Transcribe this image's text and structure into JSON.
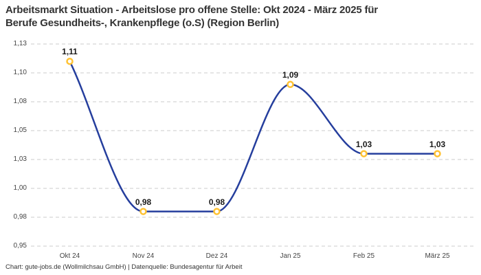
{
  "header": {
    "title_lines": [
      "Arbeitsmarkt Situation - Arbeitslose pro offene Stelle: Okt 2024 - März 2025 für",
      "Berufe Gesundheits-, Krankenpflege (o.S) (Region Berlin)"
    ]
  },
  "footer": {
    "attribution": "Chart: gute-jobs.de (Wollmilchsau GmbH) | Datenquelle: Bundesagentur für Arbeit"
  },
  "chart_data": {
    "type": "line",
    "title": "Arbeitsmarkt Situation - Arbeitslose pro offene Stelle: Okt 2024 - März 2025 für Berufe Gesundheits-, Krankenpflege (o.S) (Region Berlin)",
    "categories": [
      "Okt 24",
      "Nov 24",
      "Dez 24",
      "Jan 25",
      "Feb 25",
      "März 25"
    ],
    "values": [
      1.11,
      0.98,
      0.98,
      1.09,
      1.03,
      1.03
    ],
    "point_labels": [
      "1,11",
      "0,98",
      "0,98",
      "1,09",
      "1,03",
      "1,03"
    ],
    "xlabel": "",
    "ylabel": "",
    "ylim": [
      0.95,
      1.125
    ],
    "ytick_values": [
      0.95,
      0.975,
      1.0,
      1.025,
      1.05,
      1.075,
      1.1,
      1.125
    ],
    "ytick_labels": [
      "0,95",
      "0,98",
      "1,00",
      "1,03",
      "1,05",
      "1,08",
      "1,10",
      "1,13"
    ],
    "grid": "horizontal-dashed",
    "legend": "none",
    "curve": "monotone",
    "colors": {
      "line": "#253E9D",
      "marker_stroke": "#FFC233",
      "marker_fill": "#FFFFFF",
      "gridline": "#CBCBCB",
      "tick_text": "#444444",
      "label_text": "#1A1A1A",
      "title_text": "#333333",
      "background": "#FFFFFF"
    }
  }
}
